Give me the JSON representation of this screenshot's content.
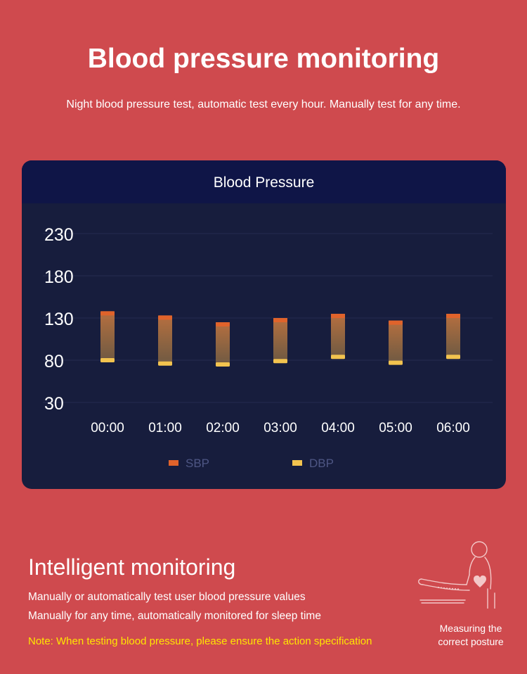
{
  "header": {
    "title": "Blood pressure monitoring",
    "subtitle": "Night blood pressure test, automatic test every hour. Manually test for any time."
  },
  "card": {
    "title": "Blood Pressure"
  },
  "chart_data": {
    "type": "bar",
    "title": "Blood Pressure",
    "categories": [
      "00:00",
      "01:00",
      "02:00",
      "03:00",
      "04:00",
      "05:00",
      "06:00"
    ],
    "series": [
      {
        "name": "SBP",
        "values": [
          138,
          133,
          125,
          130,
          135,
          127,
          135
        ],
        "color": "#e0632b"
      },
      {
        "name": "DBP",
        "values": [
          80,
          76,
          75,
          79,
          84,
          77,
          84
        ],
        "color": "#f2c34f"
      }
    ],
    "yticks": [
      230,
      180,
      130,
      80,
      30
    ],
    "ylim": [
      30,
      230
    ],
    "grid": true,
    "legend": "bottom"
  },
  "section": {
    "title": "Intelligent monitoring",
    "line1": "Manually or automatically test user blood pressure values",
    "line2": "Manually for any time, automatically monitored for sleep time",
    "note": "Note: When testing blood pressure, please ensure the action specification"
  },
  "posture": {
    "caption_line1": "Measuring the",
    "caption_line2": "correct posture",
    "icon": "person-sitting-arm-cuff-icon"
  }
}
